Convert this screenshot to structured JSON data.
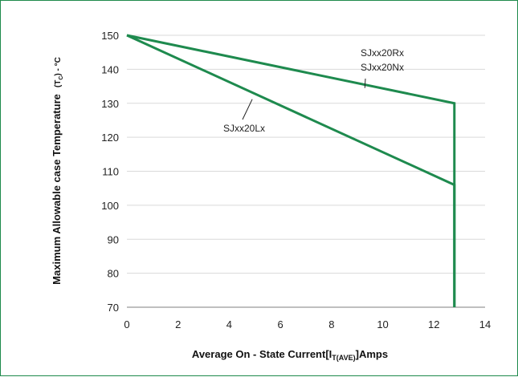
{
  "chart_data": {
    "type": "line",
    "title": "",
    "xlabel": {
      "main": "Average On - State Current[I",
      "sub": "T(AVE)",
      "tail": "]Amps"
    },
    "ylabel": {
      "main": "Maximum Allowable case Temperature",
      "paren_open": "(T",
      "sub": "C",
      "paren_close": ") - °C"
    },
    "xlim": [
      0,
      14
    ],
    "ylim": [
      70,
      150
    ],
    "xticks": [
      0,
      2,
      4,
      6,
      8,
      10,
      12,
      14
    ],
    "yticks": [
      70,
      80,
      90,
      100,
      110,
      120,
      130,
      140,
      150
    ],
    "grid": "horizontal",
    "series_color": "#1e8a4e",
    "series": [
      {
        "x": [
          0,
          12.8,
          12.8
        ],
        "y": [
          150,
          130,
          70
        ]
      },
      {
        "x": [
          0,
          12.8,
          12.8
        ],
        "y": [
          150,
          106,
          70
        ]
      }
    ],
    "annotations": [
      {
        "lines": [
          "SJxx20Rx",
          "SJxx20Nx"
        ],
        "target": [
          9.3,
          134.5
        ]
      },
      {
        "lines": [
          "SJxx20Lx"
        ],
        "target": [
          4.9,
          131.2
        ]
      }
    ]
  }
}
